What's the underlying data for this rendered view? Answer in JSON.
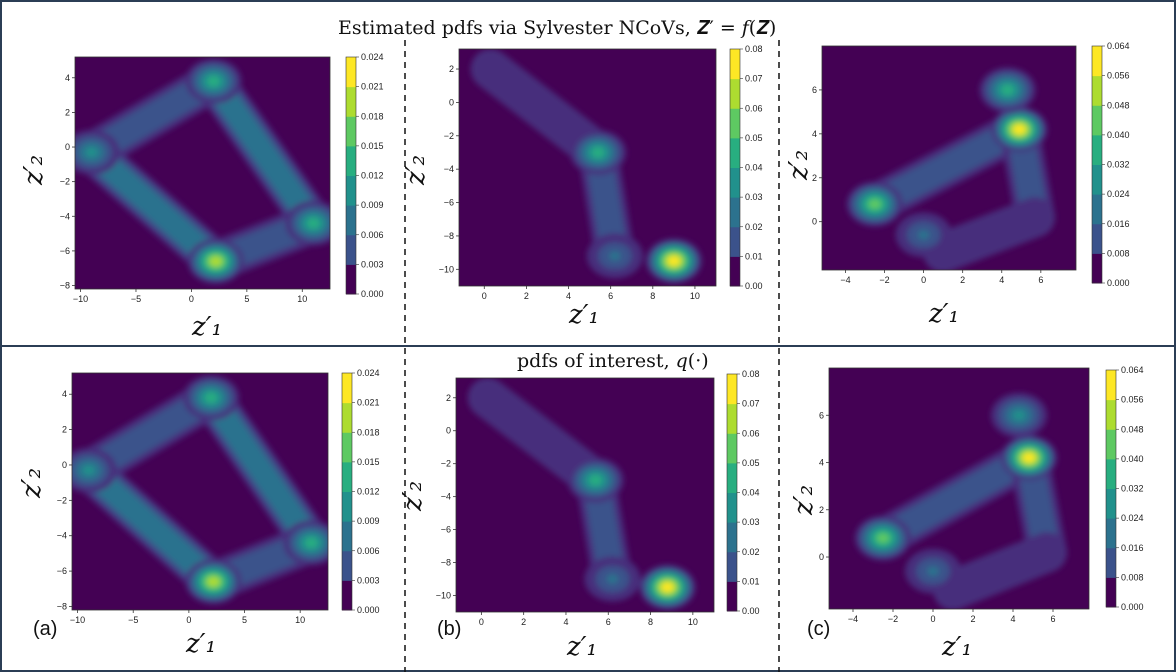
{
  "titles": {
    "top": "Estimated pdfs via Sylvester NCoVs, 𝒁′ = 𝑓(𝒁)",
    "bottom": "pdfs of interest, 𝑞(·)"
  },
  "panel_letters": [
    "(a)",
    "(b)",
    "(c)"
  ],
  "axis_labels": {
    "x": "z′₁",
    "y": "z′₂"
  },
  "colors": {
    "background": "#440154",
    "colormap": [
      "#440154",
      "#472d7b",
      "#3b528b",
      "#2c728e",
      "#21918c",
      "#28ae80",
      "#5ec962",
      "#addc30",
      "#fde725"
    ],
    "border": "#2b3d55"
  },
  "chart_data": [
    {
      "type": "heatmap",
      "panel": "(a)",
      "row": "Estimated pdfs via Sylvester NCoVs",
      "xlim": [
        -10.5,
        12.5
      ],
      "ylim": [
        -8.2,
        5.2
      ],
      "xticks": [
        -10,
        -5,
        0,
        5,
        10
      ],
      "yticks": [
        -8,
        -6,
        -4,
        -2,
        0,
        2,
        4
      ],
      "colorbar_ticks": [
        "0.000",
        "0.003",
        "0.006",
        "0.009",
        "0.012",
        "0.015",
        "0.018",
        "0.021",
        "0.024"
      ],
      "colorbar_range": [
        0,
        0.024
      ],
      "peaks": [
        {
          "x": 2,
          "y": 3.8,
          "value": 0.016
        },
        {
          "x": -9,
          "y": -0.3,
          "value": 0.013
        },
        {
          "x": 11,
          "y": -4.4,
          "value": 0.015
        },
        {
          "x": 2.2,
          "y": -6.6,
          "value": 0.022
        }
      ],
      "ridges": [
        {
          "from": [
            -9,
            -0.3
          ],
          "to": [
            2,
            3.8
          ],
          "value": 0.006
        },
        {
          "from": [
            2,
            3.8
          ],
          "to": [
            11,
            -4.4
          ],
          "value": 0.008
        },
        {
          "from": [
            11,
            -4.4
          ],
          "to": [
            2.2,
            -6.6
          ],
          "value": 0.007
        },
        {
          "from": [
            2.2,
            -6.6
          ],
          "to": [
            -9,
            -0.3
          ],
          "value": 0.009
        }
      ]
    },
    {
      "type": "heatmap",
      "panel": "(b)",
      "row": "Estimated pdfs via Sylvester NCoVs",
      "xlim": [
        -1.2,
        11
      ],
      "ylim": [
        -11,
        3.2
      ],
      "xticks": [
        0,
        2,
        4,
        6,
        8,
        10
      ],
      "yticks": [
        -10,
        -8,
        -6,
        -4,
        -2,
        0,
        2
      ],
      "colorbar_ticks": [
        "0.00",
        "0.01",
        "0.02",
        "0.03",
        "0.04",
        "0.05",
        "0.06",
        "0.07",
        "0.08"
      ],
      "colorbar_range": [
        0,
        0.08
      ],
      "peaks": [
        {
          "x": 9,
          "y": -9.5,
          "value": 0.08
        },
        {
          "x": 5.4,
          "y": -3,
          "value": 0.05
        },
        {
          "x": 6.2,
          "y": -9.2,
          "value": 0.03
        }
      ],
      "ridges": [
        {
          "from": [
            0.3,
            2
          ],
          "to": [
            5.4,
            -3
          ],
          "value": 0.01
        },
        {
          "from": [
            5.4,
            -3
          ],
          "to": [
            6.2,
            -9.2
          ],
          "value": 0.02
        }
      ]
    },
    {
      "type": "heatmap",
      "panel": "(c)",
      "row": "Estimated pdfs via Sylvester NCoVs",
      "xlim": [
        -5.2,
        7.8
      ],
      "ylim": [
        -2.2,
        8
      ],
      "xticks": [
        -4,
        -2,
        0,
        2,
        4,
        6
      ],
      "yticks": [
        0,
        2,
        4,
        6
      ],
      "colorbar_ticks": [
        "0.000",
        "0.008",
        "0.016",
        "0.024",
        "0.032",
        "0.040",
        "0.048",
        "0.056",
        "0.064"
      ],
      "colorbar_range": [
        0,
        0.064
      ],
      "peaks": [
        {
          "x": -2.5,
          "y": 0.8,
          "value": 0.048
        },
        {
          "x": 4.9,
          "y": 4.2,
          "value": 0.064
        },
        {
          "x": 4.3,
          "y": 6,
          "value": 0.04
        },
        {
          "x": 0,
          "y": -0.6,
          "value": 0.02
        }
      ],
      "ridges": [
        {
          "from": [
            -2.5,
            0.8
          ],
          "to": [
            4.9,
            4.2
          ],
          "value": 0.016
        },
        {
          "from": [
            4.9,
            4.2
          ],
          "to": [
            5.7,
            0.2
          ],
          "value": 0.012
        },
        {
          "from": [
            5.7,
            0.2
          ],
          "to": [
            1,
            -1.4
          ],
          "value": 0.01
        }
      ]
    },
    {
      "type": "heatmap",
      "panel": "(a)",
      "row": "pdfs of interest",
      "xlim": [
        -10.5,
        12.5
      ],
      "ylim": [
        -8.2,
        5.2
      ],
      "xticks": [
        -10,
        -5,
        0,
        5,
        10
      ],
      "yticks": [
        -8,
        -6,
        -4,
        -2,
        0,
        2,
        4
      ],
      "colorbar_ticks": [
        "0.000",
        "0.003",
        "0.006",
        "0.009",
        "0.012",
        "0.015",
        "0.018",
        "0.021",
        "0.024"
      ],
      "colorbar_range": [
        0,
        0.024
      ],
      "peaks": [
        {
          "x": 2,
          "y": 3.8,
          "value": 0.015
        },
        {
          "x": -9,
          "y": -0.3,
          "value": 0.012
        },
        {
          "x": 11,
          "y": -4.4,
          "value": 0.014
        },
        {
          "x": 2.2,
          "y": -6.6,
          "value": 0.022
        }
      ],
      "ridges": [
        {
          "from": [
            -9,
            -0.3
          ],
          "to": [
            2,
            3.8
          ],
          "value": 0.006
        },
        {
          "from": [
            2,
            3.8
          ],
          "to": [
            11,
            -4.4
          ],
          "value": 0.008
        },
        {
          "from": [
            11,
            -4.4
          ],
          "to": [
            2.2,
            -6.6
          ],
          "value": 0.007
        },
        {
          "from": [
            2.2,
            -6.6
          ],
          "to": [
            -9,
            -0.3
          ],
          "value": 0.01
        }
      ]
    },
    {
      "type": "heatmap",
      "panel": "(b)",
      "row": "pdfs of interest",
      "xlim": [
        -1.2,
        11
      ],
      "ylim": [
        -11,
        3.2
      ],
      "xticks": [
        0,
        2,
        4,
        6,
        8,
        10
      ],
      "yticks": [
        -10,
        -8,
        -6,
        -4,
        -2,
        0,
        2
      ],
      "colorbar_ticks": [
        "0.00",
        "0.01",
        "0.02",
        "0.03",
        "0.04",
        "0.05",
        "0.06",
        "0.07",
        "0.08"
      ],
      "colorbar_range": [
        0,
        0.08
      ],
      "peaks": [
        {
          "x": 8.8,
          "y": -9.5,
          "value": 0.08
        },
        {
          "x": 5.4,
          "y": -3,
          "value": 0.045
        },
        {
          "x": 6.2,
          "y": -9,
          "value": 0.03
        }
      ],
      "ridges": [
        {
          "from": [
            0.3,
            2
          ],
          "to": [
            5.4,
            -3
          ],
          "value": 0.01
        },
        {
          "from": [
            5.4,
            -3
          ],
          "to": [
            6.2,
            -9
          ],
          "value": 0.02
        }
      ]
    },
    {
      "type": "heatmap",
      "panel": "(c)",
      "row": "pdfs of interest",
      "xlim": [
        -5.2,
        7.8
      ],
      "ylim": [
        -2.2,
        8
      ],
      "xticks": [
        -4,
        -2,
        0,
        2,
        4,
        6
      ],
      "yticks": [
        0,
        2,
        4,
        6
      ],
      "colorbar_ticks": [
        "0.000",
        "0.008",
        "0.016",
        "0.024",
        "0.032",
        "0.040",
        "0.048",
        "0.056",
        "0.064"
      ],
      "colorbar_range": [
        0,
        0.064
      ],
      "peaks": [
        {
          "x": -2.5,
          "y": 0.8,
          "value": 0.048
        },
        {
          "x": 4.8,
          "y": 4.2,
          "value": 0.064
        },
        {
          "x": 4.3,
          "y": 6,
          "value": 0.035
        },
        {
          "x": 0,
          "y": -0.6,
          "value": 0.02
        }
      ],
      "ridges": [
        {
          "from": [
            -2.5,
            0.8
          ],
          "to": [
            4.8,
            4.2
          ],
          "value": 0.016
        },
        {
          "from": [
            4.8,
            4.2
          ],
          "to": [
            5.7,
            0.2
          ],
          "value": 0.012
        },
        {
          "from": [
            5.7,
            0.2
          ],
          "to": [
            1,
            -1.4
          ],
          "value": 0.01
        }
      ]
    }
  ]
}
